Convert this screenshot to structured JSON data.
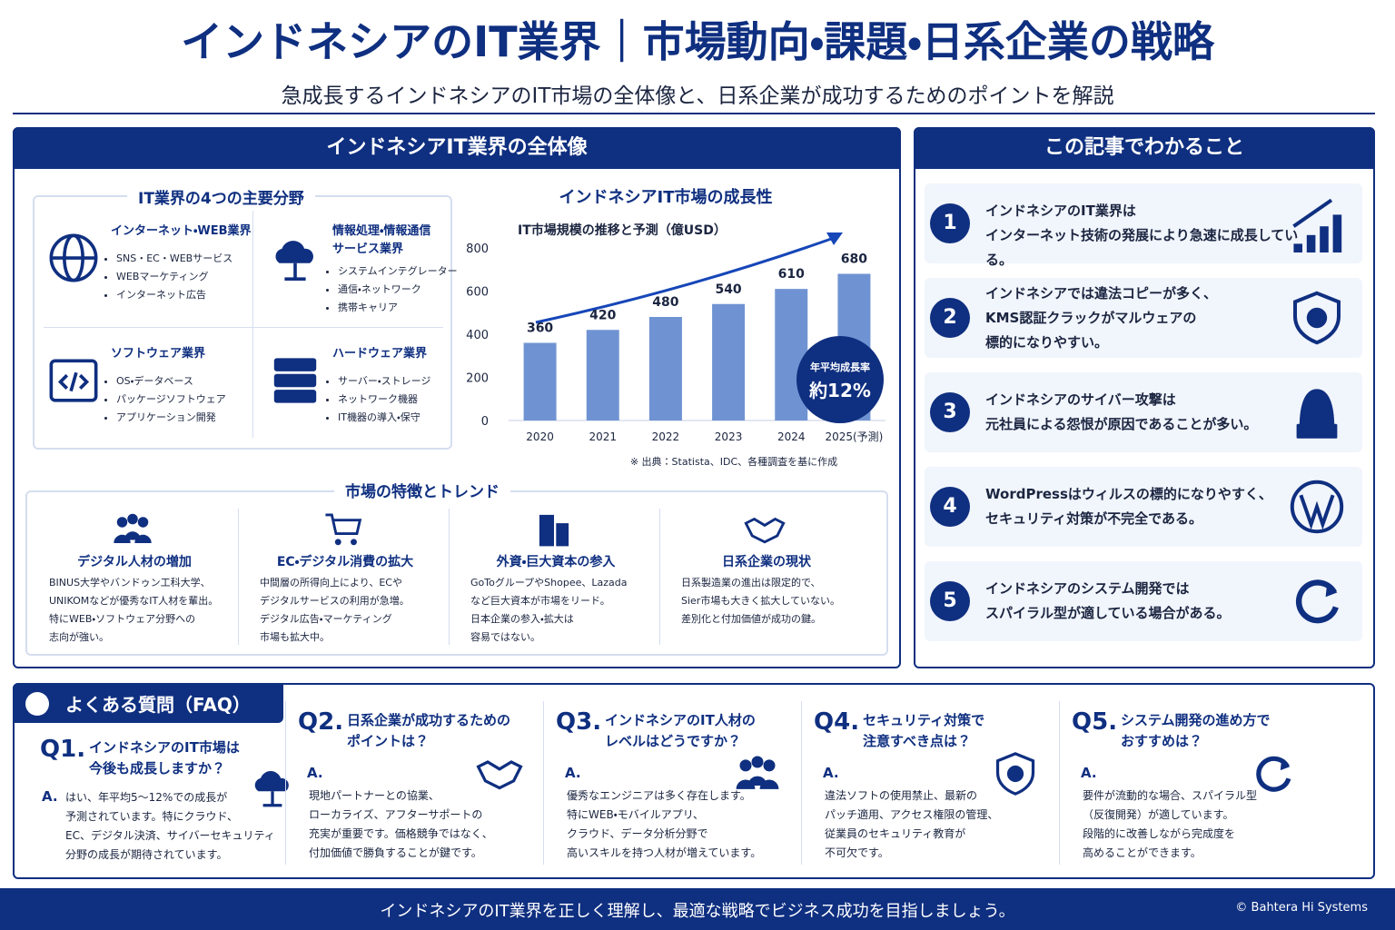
{
  "header": {
    "title": "インドネシアのIT業界｜市場動向・課題・日系企業の戦略",
    "subtitle": "急成長するインドネシアのIT市場の全体像と、日系企業が成功するためのポイントを解説"
  },
  "overview": {
    "title": "インドネシアIT業界の全体像",
    "fields_title": "IT業界の4つの主要分野",
    "fields": [
      {
        "name": "インターネット・WEB業界",
        "items": [
          "SNS・EC・WEBサービス",
          "WEBマーケティング",
          "インターネット広告"
        ]
      },
      {
        "name": "情報処理・情報通信\nサービス業界",
        "items": [
          "システムインテグレーター",
          "通信・ネットワーク",
          "携帯キャリア"
        ]
      },
      {
        "name": "ソフトウェア業界",
        "items": [
          "OS・データベース",
          "パッケージソフトウェア",
          "アプリケーション開発"
        ]
      },
      {
        "name": "ハードウェア業界",
        "items": [
          "サーバー・ストレージ",
          "ネットワーク機器",
          "IT機器の導入・保守"
        ]
      }
    ],
    "trends_title": "市場の特徴とトレンド",
    "trends": [
      {
        "title": "デジタル人材の増加",
        "text": "BINUS大学やバンドゥン工科大学、\nUNIKOMなどが優秀なIT人材を輩出。\n特にWEB・ソフトウェア分野への\n志向が強い。"
      },
      {
        "title": "EC・デジタル消費の拡大",
        "text": "中間層の所得向上により、ECや\nデジタルサービスの利用が急増。\nデジタル広告・マーケティング\n市場も拡大中。"
      },
      {
        "title": "外資・巨大資本の参入",
        "text": "GoToグループやShopee、Lazada\nなど巨大資本が市場をリード。\n日本企業の参入・拡大は\n容易ではない。"
      },
      {
        "title": "日系企業の現状",
        "text": "日系製造業の進出は限定的で、\nSier市場も大きく拡大していない。\n差別化と付加価値が成功の鍵。"
      }
    ]
  },
  "chart_data": {
    "type": "bar",
    "title": "インドネシアIT市場の成長性",
    "subtitle": "IT市場規模の推移と予測（億USD）",
    "categories": [
      "2020",
      "2021",
      "2022",
      "2023",
      "2024",
      "2025(予測)"
    ],
    "values": [
      360,
      420,
      480,
      540,
      610,
      680
    ],
    "color": "#6f93d2",
    "ylim": [
      0,
      800
    ],
    "yticks": [
      0,
      200,
      400,
      600,
      800
    ],
    "grid": false,
    "badge": {
      "label": "年平均成長率",
      "value": "約12%"
    },
    "source": "※ 出典：Statista、IDC、各種調査を基に作成"
  },
  "summary": {
    "title": "この記事でわかること",
    "items": [
      {
        "number": "1",
        "text": "インドネシアのIT業界は\nインターネット技術の発展により急速に成長している。"
      },
      {
        "number": "2",
        "text": "インドネシアでは違法コピーが多く、\nKMS認証クラックがマルウェアの\n標的になりやすい。"
      },
      {
        "number": "3",
        "text": "インドネシアのサイバー攻撃は\n元社員による怨恨が原因であることが多い。"
      },
      {
        "number": "4",
        "text": "WordPressはウィルスの標的になりやすく、\nセキュリティ対策が不完全である。"
      },
      {
        "number": "5",
        "text": "インドネシアのシステム開発では\nスパイラル型が適している場合がある。"
      }
    ]
  },
  "faq": {
    "title": "よくある質問（FAQ）",
    "items": [
      {
        "q_label": "Q1.",
        "question": "インドネシアのIT市場は\n今後も成長しますか？",
        "a_label": "A.",
        "answer": "はい、年平均5～12%での成長が\n予測されています。特にクラウド、\nEC、デジタル決済、サイバーセキュリティ\n分野の成長が期待されています。"
      },
      {
        "q_label": "Q2.",
        "question": "日系企業が成功するための\nポイントは？",
        "a_label": "A.",
        "answer": "現地パートナーとの協業、\nローカライズ、アフターサポートの\n充実が重要です。価格競争ではなく、\n付加価値で勝負することが鍵です。"
      },
      {
        "q_label": "Q3.",
        "question": "インドネシアのIT人材の\nレベルはどうですか？",
        "a_label": "A.",
        "answer": "優秀なエンジニアは多く存在します。\n特にWEB・モバイルアプリ、\nクラウド、データ分析分野で\n高いスキルを持つ人材が増えています。"
      },
      {
        "q_label": "Q4.",
        "question": "セキュリティ対策で\n注意すべき点は？",
        "a_label": "A.",
        "answer": "違法ソフトの使用禁止、最新の\nパッチ適用、アクセス権限の管理、\n従業員のセキュリティ教育が\n不可欠です。"
      },
      {
        "q_label": "Q5.",
        "question": "システム開発の進め方で\nおすすめは？",
        "a_label": "A.",
        "answer": "要件が流動的な場合、スパイラル型\n（反復開発）が適しています。\n段階的に改善しながら完成度を\n高めることができます。"
      }
    ]
  },
  "footer": {
    "message": "インドネシアのIT業界を正しく理解し、最適な戦略でビジネス成功を目指しましょう。",
    "copyright": "© Bahtera Hi Systems"
  }
}
